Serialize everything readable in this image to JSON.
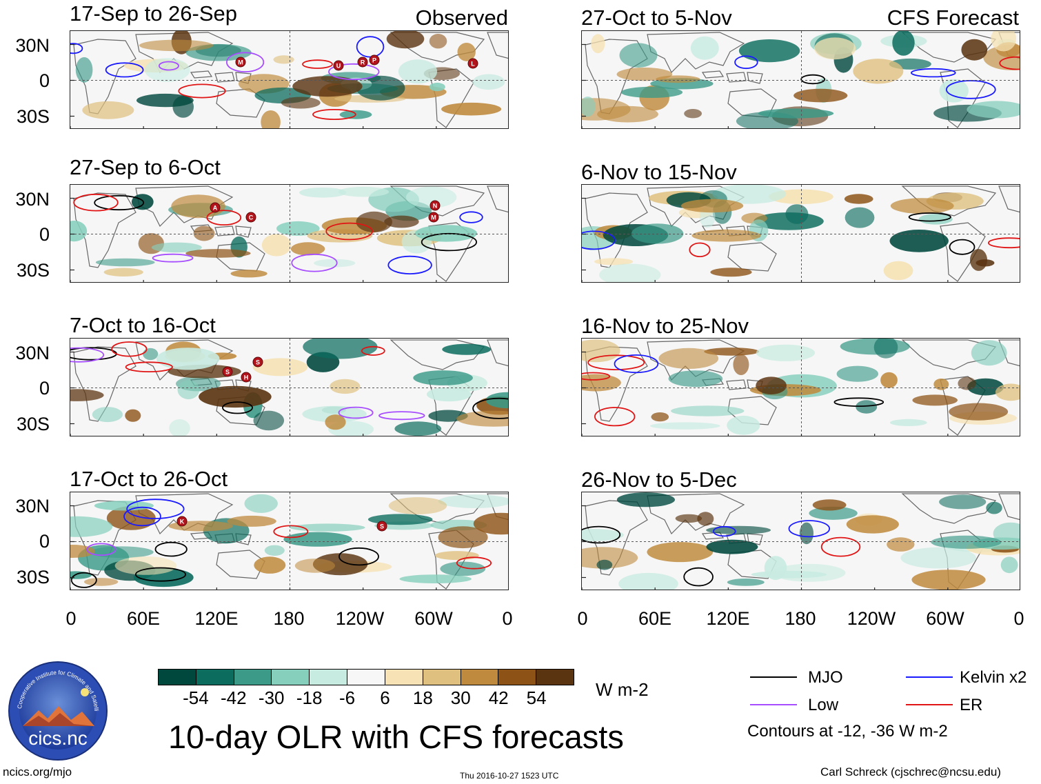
{
  "header": {
    "left_label": "Observed",
    "right_label": "CFS Forecast"
  },
  "panels": {
    "left": [
      {
        "period": "17-Sep to 26-Sep"
      },
      {
        "period": "27-Sep to 6-Oct"
      },
      {
        "period": "7-Oct to 16-Oct"
      },
      {
        "period": "17-Oct to 26-Oct"
      }
    ],
    "right": [
      {
        "period": "27-Oct to 5-Nov"
      },
      {
        "period": "6-Nov to 15-Nov"
      },
      {
        "period": "16-Nov to 25-Nov"
      },
      {
        "period": "26-Nov to 5-Dec"
      }
    ]
  },
  "axes": {
    "lat_labels": [
      "30N",
      "0",
      "30S"
    ],
    "lon_labels": [
      "0",
      "60E",
      "120E",
      "180",
      "120W",
      "60W",
      "0"
    ]
  },
  "colorbar": {
    "ticks": [
      "-54",
      "-42",
      "-30",
      "-18",
      "-6",
      "6",
      "18",
      "30",
      "42",
      "54"
    ],
    "colors": [
      "#00483e",
      "#0c6c5e",
      "#3b9a88",
      "#86cfbd",
      "#c8ebe1",
      "#f7f7f7",
      "#f6e2b4",
      "#dfc07e",
      "#bf8a3d",
      "#8d5316",
      "#5a3310"
    ],
    "units": "W m-2"
  },
  "title": "10-day OLR with CFS forecasts",
  "legend": {
    "items": [
      {
        "label": "MJO",
        "color": "#000000"
      },
      {
        "label": "Kelvin x2",
        "color": "#1a1aff"
      },
      {
        "label": "Low",
        "color": "#a64dff"
      },
      {
        "label": "ER",
        "color": "#e01414"
      }
    ],
    "note": "Contours at -12, -36 W m-2"
  },
  "storm_markers": {
    "panel1": [
      "M",
      "U",
      "R",
      "P",
      "L"
    ],
    "panel2": [
      "A",
      "C",
      "N",
      "M"
    ],
    "panel3": [
      "S",
      "S",
      "H"
    ],
    "panel4": [
      "K",
      "S"
    ]
  },
  "logo": {
    "arc_text": "Cooperative Institute for Climate and Satellites",
    "name": "cics.nc"
  },
  "footer": {
    "url": "ncics.org/mjo",
    "timestamp": "Thu 2016-10-27 1523 UTC",
    "author": "Carl Schreck (cjschrec@ncsu.edu)"
  }
}
